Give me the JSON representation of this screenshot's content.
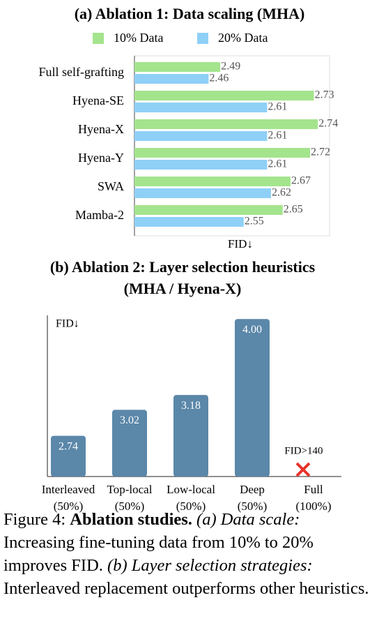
{
  "chart_data": [
    {
      "type": "hbar",
      "title": "(a) Ablation 1: Data scaling (MHA)",
      "categories": [
        "Full self-grafting",
        "Hyena-SE",
        "Hyena-X",
        "Hyena-Y",
        "SWA",
        "Mamba-2"
      ],
      "series": [
        {
          "name": "10% Data",
          "color": "#a4e48d",
          "values": [
            2.49,
            2.73,
            2.74,
            2.72,
            2.67,
            2.65
          ]
        },
        {
          "name": "20% Data",
          "color": "#8fd0f7",
          "values": [
            2.46,
            2.61,
            2.61,
            2.61,
            2.62,
            2.55
          ]
        }
      ],
      "xlim": [
        2.27,
        2.77
      ],
      "x_label": "FID↓",
      "legend": "top"
    },
    {
      "type": "bar",
      "title": [
        "(b) Ablation 2: Layer selection heuristics",
        "(MHA / Hyena-X)"
      ],
      "categories": [
        [
          "Interleaved",
          "(50%)"
        ],
        [
          "Top-local",
          "(50%)"
        ],
        [
          "Low-local",
          "(50%)"
        ],
        [
          "Deep",
          "(50%)"
        ],
        [
          "Full",
          "(100%)"
        ]
      ],
      "values": [
        2.74,
        3.02,
        3.18,
        4.0,
        null
      ],
      "value_labels": [
        "2.74",
        "3.02",
        "3.18",
        "4.00",
        null
      ],
      "color": "#5b87a9",
      "ylim": [
        2.3,
        4.04
      ],
      "y_label": "FID↓",
      "annotation": "FID>140"
    }
  ],
  "caption": [
    {
      "text": "Figure 4: ",
      "style": "normal"
    },
    {
      "text": "Ablation studies.",
      "style": "bold"
    },
    {
      "text": " ",
      "style": "normal"
    },
    {
      "text": "(a) Data scale:",
      "style": "italic"
    },
    {
      "text": " Increasing fine-tuning data from 10% to 20% improves FID. ",
      "style": "normal"
    },
    {
      "text": "(b) Layer selection strategies:",
      "style": "italic"
    },
    {
      "text": " Interleaved replacement outperforms other heuristics.",
      "style": "normal"
    }
  ]
}
